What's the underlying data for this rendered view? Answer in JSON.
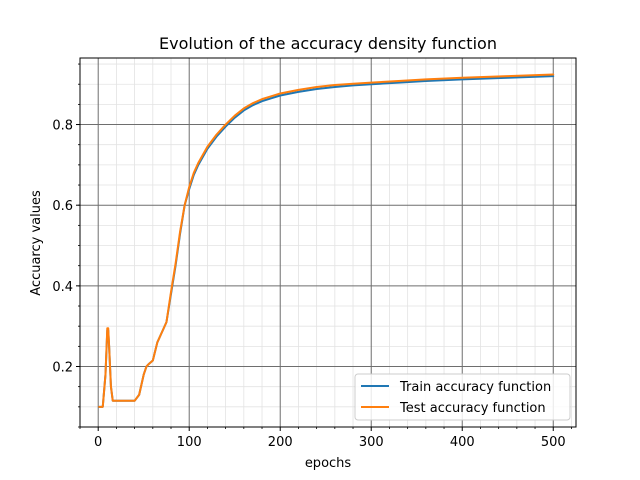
{
  "chart_data": {
    "type": "line",
    "title": "Evolution of the accuracy density function",
    "xlabel": "epochs",
    "ylabel": "Accuarcy values",
    "xlim": [
      -20,
      525
    ],
    "ylim": [
      0.05,
      0.965
    ],
    "xticks": [
      0,
      100,
      200,
      300,
      400,
      500
    ],
    "xtick_labels": [
      "0",
      "100",
      "200",
      "300",
      "400",
      "500"
    ],
    "yticks": [
      0.2,
      0.4,
      0.6,
      0.8
    ],
    "ytick_labels": [
      "0.2",
      "0.4",
      "0.6",
      "0.8"
    ],
    "grid": true,
    "minor_grid": true,
    "legend_position": "lower-right",
    "series": [
      {
        "name": "Train accuracy function",
        "color": "#1f77b4",
        "x": [
          1,
          5,
          8,
          10,
          11,
          12,
          14,
          16,
          20,
          25,
          30,
          35,
          40,
          45,
          50,
          53,
          55,
          60,
          65,
          70,
          75,
          80,
          85,
          90,
          95,
          100,
          105,
          110,
          120,
          130,
          140,
          150,
          160,
          170,
          180,
          190,
          200,
          220,
          240,
          260,
          280,
          300,
          330,
          360,
          400,
          450,
          500
        ],
        "y": [
          0.1,
          0.1,
          0.18,
          0.29,
          0.29,
          0.25,
          0.15,
          0.115,
          0.115,
          0.115,
          0.115,
          0.115,
          0.115,
          0.13,
          0.18,
          0.2,
          0.205,
          0.215,
          0.26,
          0.285,
          0.31,
          0.38,
          0.45,
          0.53,
          0.6,
          0.64,
          0.675,
          0.7,
          0.74,
          0.77,
          0.795,
          0.817,
          0.835,
          0.848,
          0.858,
          0.865,
          0.872,
          0.881,
          0.888,
          0.893,
          0.897,
          0.9,
          0.904,
          0.908,
          0.912,
          0.916,
          0.92
        ]
      },
      {
        "name": "Test accuracy function",
        "color": "#ff7f0e",
        "x": [
          1,
          5,
          8,
          10,
          11,
          12,
          14,
          16,
          20,
          25,
          30,
          35,
          40,
          45,
          50,
          53,
          55,
          60,
          65,
          70,
          75,
          80,
          85,
          90,
          95,
          100,
          105,
          110,
          120,
          130,
          140,
          150,
          160,
          170,
          180,
          190,
          200,
          220,
          240,
          260,
          280,
          300,
          330,
          360,
          400,
          450,
          500
        ],
        "y": [
          0.1,
          0.1,
          0.18,
          0.295,
          0.295,
          0.25,
          0.15,
          0.115,
          0.115,
          0.115,
          0.115,
          0.115,
          0.115,
          0.13,
          0.18,
          0.2,
          0.205,
          0.215,
          0.26,
          0.285,
          0.31,
          0.385,
          0.455,
          0.535,
          0.6,
          0.645,
          0.68,
          0.705,
          0.745,
          0.775,
          0.8,
          0.822,
          0.84,
          0.853,
          0.863,
          0.87,
          0.877,
          0.886,
          0.893,
          0.898,
          0.901,
          0.904,
          0.908,
          0.912,
          0.916,
          0.92,
          0.924
        ]
      }
    ]
  }
}
